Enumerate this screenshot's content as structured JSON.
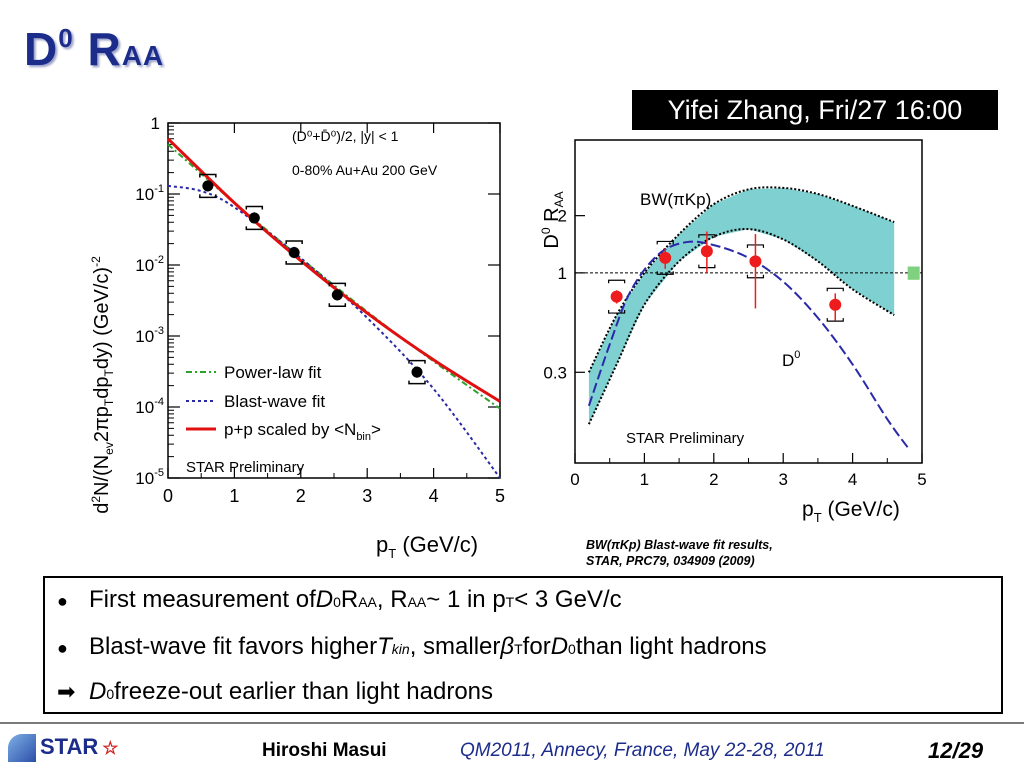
{
  "slide": {
    "title": {
      "main": "D",
      "sup": "0",
      "space": " R",
      "sub": "AA"
    },
    "talk_ref": "Yifei Zhang, Fri/27 16:00",
    "caption": {
      "line1": "BW(πKp) Blast-wave fit results,",
      "line2": "STAR, PRC79, 034909 (2009)"
    },
    "bullets": [
      {
        "marker": "●",
        "parts": [
          "First measurement of ",
          "D",
          "0",
          " R",
          "AA",
          ", R",
          "AA",
          " ~ 1 in p",
          "T",
          " < 3 GeV/c"
        ]
      },
      {
        "marker": "●",
        "parts": [
          "Blast-wave fit favors higher ",
          "T",
          "kin",
          ", smaller ",
          "β",
          "T",
          " for ",
          "D",
          "0",
          " than light hadrons"
        ]
      },
      {
        "marker": "➡",
        "parts": [
          "D",
          "0",
          " freeze-out earlier than light hadrons"
        ]
      }
    ],
    "footer": {
      "logo_text": "STAR",
      "logo_star": "☆",
      "author": "Hiroshi Masui",
      "conference": "QM2011, Annecy, France, May 22-28, 2011",
      "page": "12/29"
    },
    "colors": {
      "title": "#1c2c8a",
      "conference": "#1c2c8a",
      "data_red": "#ee1c1c",
      "band": "#7fd1d1",
      "band_edge": "#000000",
      "blast_wave": "#2a2aa8",
      "power_law": "#29a329",
      "pp_scaled": "#e01010",
      "sys_box": "#7fd07f"
    }
  },
  "chart_data": [
    {
      "type": "scatter",
      "title": "",
      "xlabel": "p_T (GeV/c)",
      "ylabel": "d²N/(N_ev 2πp_T dp_T dy) (GeV/c)^-2",
      "ylabel_parts": {
        "a": "d",
        "b": "2",
        "c": "N/(N",
        "d": "ev",
        "e": "2πp",
        "f": "T",
        "g": "dp",
        "h": "T",
        "i": "dy) (GeV/c)",
        "j": "-2"
      },
      "xlabel_parts": {
        "main": "p",
        "sub": "T",
        "rest": " (GeV/c)"
      },
      "xlim": [
        0,
        5
      ],
      "ylim": [
        1e-05,
        1
      ],
      "yscale": "log",
      "x_ticks": [
        "0",
        "1",
        "2",
        "3",
        "4",
        "5"
      ],
      "y_ticks": [
        {
          "value": 1,
          "base": "1",
          "exp": ""
        },
        {
          "value": 0.1,
          "base": "10",
          "exp": "-1"
        },
        {
          "value": 0.01,
          "base": "10",
          "exp": "-2"
        },
        {
          "value": 0.001,
          "base": "10",
          "exp": "-3"
        },
        {
          "value": 0.0001,
          "base": "10",
          "exp": "-4"
        },
        {
          "value": 1e-05,
          "base": "10",
          "exp": "-5"
        }
      ],
      "annotations": {
        "line1": "(D⁰+D̄⁰)/2, |y| < 1",
        "line2": "0-80% Au+Au 200 GeV",
        "preliminary": "STAR Preliminary"
      },
      "legend": [
        {
          "label": "Power-law fit",
          "style": "dash-dot",
          "color": "#29a329"
        },
        {
          "label": "Blast-wave fit",
          "style": "dotted",
          "color": "#2a2aa8"
        },
        {
          "label": "p+p scaled by <N",
          "sub": "bin",
          "tail": ">",
          "style": "solid",
          "color": "#e01010"
        }
      ],
      "series": [
        {
          "name": "D0 data",
          "x": [
            0.6,
            1.3,
            1.9,
            2.55,
            3.75
          ],
          "y": [
            0.13,
            0.046,
            0.015,
            0.0038,
            0.00031
          ]
        },
        {
          "name": "Power-law fit",
          "x": [
            0,
            1,
            2,
            3,
            4,
            5
          ],
          "y": [
            0.5,
            0.075,
            0.0125,
            0.0022,
            0.00044,
            9.5e-05
          ]
        },
        {
          "name": "Blast-wave fit",
          "x": [
            0,
            0.5,
            1,
            2,
            3,
            4,
            5
          ],
          "y": [
            0.13,
            0.11,
            0.065,
            0.0125,
            0.0018,
            0.00018,
            1e-05
          ]
        },
        {
          "name": "p+p scaled by <Nbin>",
          "x": [
            0,
            1,
            2,
            3,
            4,
            5
          ],
          "y": [
            0.6,
            0.075,
            0.0115,
            0.0021,
            0.00046,
            0.00012
          ]
        }
      ]
    },
    {
      "type": "scatter",
      "title": "",
      "xlabel": "p_T (GeV/c)",
      "ylabel": "D0 R_AA",
      "ylabel_parts": {
        "a": "D",
        "b": "0",
        "c": " R",
        "d": "AA"
      },
      "xlabel_parts": {
        "main": "p",
        "sub": "T",
        "rest": " (GeV/c)"
      },
      "xlim": [
        0,
        5
      ],
      "ylim": [
        0.1,
        5
      ],
      "yscale": "log",
      "x_ticks": [
        "0",
        "1",
        "2",
        "3",
        "4",
        "5"
      ],
      "y_ticks": [
        {
          "value": 2,
          "label": "2"
        },
        {
          "value": 1,
          "label": "1"
        },
        {
          "value": 0.3,
          "label": "0.3"
        }
      ],
      "annotations": {
        "band_label": "BW(πKp)",
        "curve_label": "D",
        "curve_label_sup": "0",
        "preliminary": "STAR Preliminary"
      },
      "series": [
        {
          "name": "D0 R_AA",
          "x": [
            0.6,
            1.3,
            1.9,
            2.6,
            3.75
          ],
          "y": [
            0.75,
            1.2,
            1.3,
            1.15,
            0.68
          ],
          "err_low": [
            0.06,
            0.15,
            0.3,
            0.5,
            0.12
          ],
          "err_high": [
            0.06,
            0.15,
            0.35,
            0.45,
            0.1
          ]
        },
        {
          "name": "BW(πKp) upper",
          "x": [
            0.2,
            0.6,
            1.0,
            1.5,
            2.0,
            2.5,
            3.0,
            3.5,
            4.0,
            4.6
          ],
          "y": [
            0.3,
            0.6,
            1.0,
            1.6,
            2.3,
            2.75,
            2.8,
            2.6,
            2.25,
            1.85
          ]
        },
        {
          "name": "BW(πKp) lower",
          "x": [
            0.2,
            0.6,
            1.0,
            1.5,
            2.0,
            2.5,
            3.0,
            3.5,
            4.0,
            4.6
          ],
          "y": [
            0.16,
            0.33,
            0.68,
            1.15,
            1.55,
            1.7,
            1.5,
            1.15,
            0.82,
            0.6
          ]
        },
        {
          "name": "D0 blast-wave",
          "x": [
            0.2,
            0.5,
            0.8,
            1.2,
            1.6,
            2.0,
            2.5,
            3.0,
            3.5,
            4.0,
            4.5,
            4.8
          ],
          "y": [
            0.2,
            0.42,
            0.8,
            1.25,
            1.45,
            1.4,
            1.2,
            0.9,
            0.58,
            0.33,
            0.17,
            0.12
          ]
        }
      ],
      "reference_line": 1
    }
  ]
}
